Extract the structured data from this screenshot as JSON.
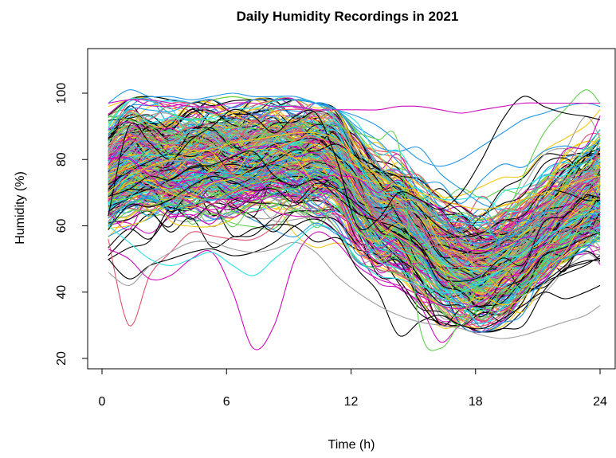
{
  "chart_data": {
    "type": "line",
    "title": "Daily Humidity Recordings in 2021",
    "xlabel": "Time (h)",
    "ylabel": "Humidity (%)",
    "xlim": [
      0,
      24
    ],
    "ylim": [
      18,
      110
    ],
    "xticks": [
      0,
      6,
      12,
      18,
      24
    ],
    "yticks": [
      20,
      40,
      60,
      80,
      100
    ],
    "grid": false,
    "legend": "none",
    "n_series": 365,
    "x": [
      0.3,
      1.3,
      2.3,
      3.3,
      4.3,
      5.3,
      6.3,
      7.3,
      8.3,
      9.3,
      10.3,
      11.3,
      12.3,
      13.3,
      14.3,
      15.3,
      16.3,
      17.3,
      18.3,
      19.3,
      20.3,
      21.3,
      22.3,
      23.3,
      24.0
    ],
    "mean_curve": [
      76,
      80,
      80,
      79,
      80,
      80,
      80,
      81,
      82,
      82,
      81,
      79,
      71,
      64,
      62,
      57,
      51,
      48,
      47,
      49,
      53,
      59,
      64,
      68,
      70
    ],
    "upper_envelope": [
      97,
      99,
      100,
      99,
      98,
      99,
      100,
      99,
      99,
      99,
      98,
      96,
      96,
      95,
      95,
      94,
      92,
      93,
      95,
      97,
      97,
      97,
      99,
      100,
      98
    ],
    "lower_envelope": [
      44,
      30,
      40,
      37,
      42,
      41,
      45,
      23,
      30,
      48,
      51,
      42,
      37,
      28,
      27,
      26,
      23,
      28,
      26,
      27,
      27,
      30,
      31,
      33,
      35
    ],
    "highlighted_series": [
      {
        "color": "#DF536B",
        "values": [
          56,
          30,
          45,
          52,
          58,
          57,
          56,
          56,
          60,
          68,
          72,
          68,
          55,
          47,
          46,
          40,
          36,
          35,
          37,
          41,
          46,
          52,
          57,
          61,
          62
        ]
      },
      {
        "color": "#CD0BBC",
        "values": [
          53,
          50,
          44,
          45,
          50,
          52,
          40,
          23,
          30,
          50,
          58,
          55,
          48,
          44,
          42,
          39,
          36,
          35,
          37,
          42,
          48,
          55,
          60,
          63,
          64
        ]
      },
      {
        "color": "#000000",
        "values": [
          50,
          44,
          48,
          50,
          52,
          53,
          51,
          52,
          55,
          60,
          62,
          58,
          47,
          40,
          27,
          31,
          33,
          30,
          29,
          32,
          36,
          40,
          38,
          40,
          42
        ]
      },
      {
        "color": "#9E9E9E",
        "values": [
          46,
          42,
          48,
          52,
          55,
          55,
          53,
          52,
          53,
          55,
          52,
          45,
          40,
          36,
          33,
          31,
          30,
          29,
          27,
          26,
          27,
          29,
          31,
          33,
          36
        ]
      },
      {
        "color": "#2297E6",
        "values": [
          97,
          101,
          99,
          99,
          98,
          99,
          100,
          99,
          99,
          99,
          97,
          95,
          93,
          90,
          85,
          80,
          78,
          80,
          84,
          88,
          92,
          94,
          96,
          97,
          96
        ]
      },
      {
        "color": "#28E2E5",
        "values": [
          60,
          55,
          50,
          48,
          50,
          52,
          48,
          45,
          50,
          55,
          60,
          58,
          50,
          45,
          44,
          42,
          40,
          40,
          43,
          47,
          52,
          56,
          60,
          63,
          64
        ]
      },
      {
        "color": "#61D04F",
        "values": [
          93,
          92,
          90,
          88,
          86,
          85,
          85,
          86,
          88,
          90,
          91,
          90,
          88,
          86,
          84,
          30,
          23,
          32,
          45,
          60,
          75,
          88,
          95,
          101,
          97
        ]
      },
      {
        "color": "#000000",
        "values": [
          63,
          90,
          85,
          80,
          86,
          90,
          95,
          93,
          88,
          93,
          94,
          80,
          60,
          62,
          70,
          68,
          65,
          70,
          80,
          92,
          99,
          96,
          94,
          93,
          92
        ]
      },
      {
        "color": "#F5C710",
        "values": [
          70,
          75,
          78,
          80,
          82,
          83,
          85,
          86,
          87,
          88,
          88,
          86,
          80,
          75,
          72,
          70,
          68,
          66,
          65,
          66,
          68,
          70,
          72,
          74,
          75
        ]
      },
      {
        "color": "#CD0BBC",
        "values": [
          97,
          98,
          98,
          97,
          96,
          96,
          97,
          97,
          96,
          96,
          95,
          95,
          95,
          95,
          96,
          96,
          95,
          94,
          95,
          96,
          97,
          97,
          97,
          97,
          97
        ]
      }
    ],
    "palette": [
      "#000000",
      "#DF536B",
      "#61D04F",
      "#2297E6",
      "#28E2E5",
      "#CD0BBC",
      "#F5C710",
      "#9E9E9E"
    ]
  }
}
